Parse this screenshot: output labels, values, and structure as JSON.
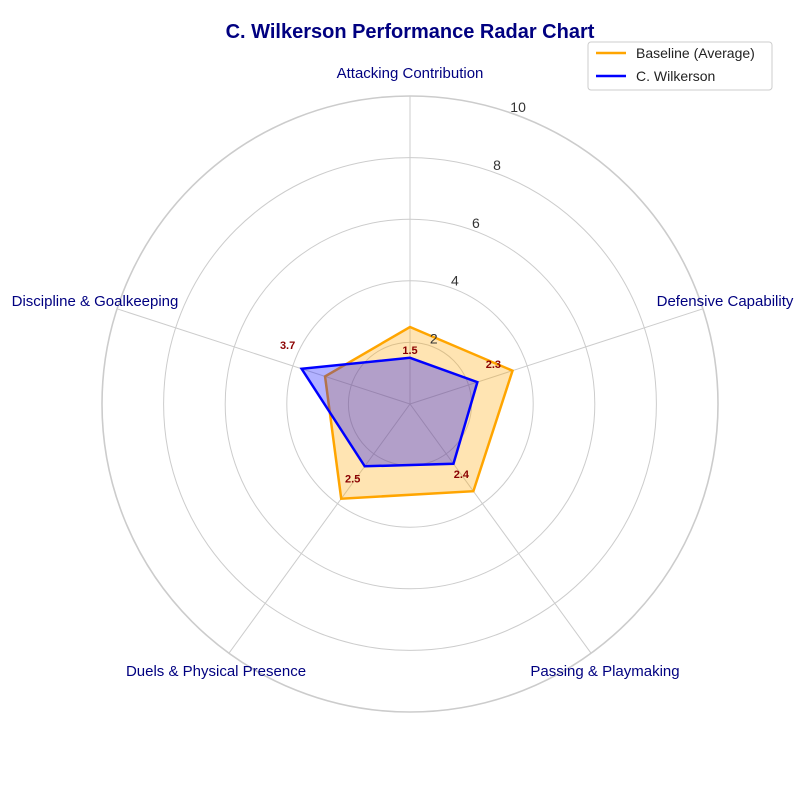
{
  "chart_data": {
    "type": "radar",
    "title": "C. Wilkerson Performance Radar Chart",
    "categories": [
      "Attacking Contribution",
      "Defensive Capability",
      "Passing & Playmaking",
      "Duels & Physical Presence",
      "Discipline & Goalkeeping"
    ],
    "rlim": [
      0,
      10
    ],
    "r_ticks": [
      2,
      4,
      6,
      8,
      10
    ],
    "grid": true,
    "legend_position": "top-right",
    "series": [
      {
        "name": "Baseline (Average)",
        "values": [
          2.5,
          3.5,
          3.5,
          3.8,
          2.9
        ],
        "color": "#ffa500"
      },
      {
        "name": "C. Wilkerson",
        "values": [
          1.5,
          2.3,
          2.4,
          2.5,
          3.7
        ],
        "color": "#0000ff",
        "data_labels": [
          "1.5",
          "2.3",
          "2.4",
          "2.5",
          "3.7"
        ]
      }
    ]
  }
}
